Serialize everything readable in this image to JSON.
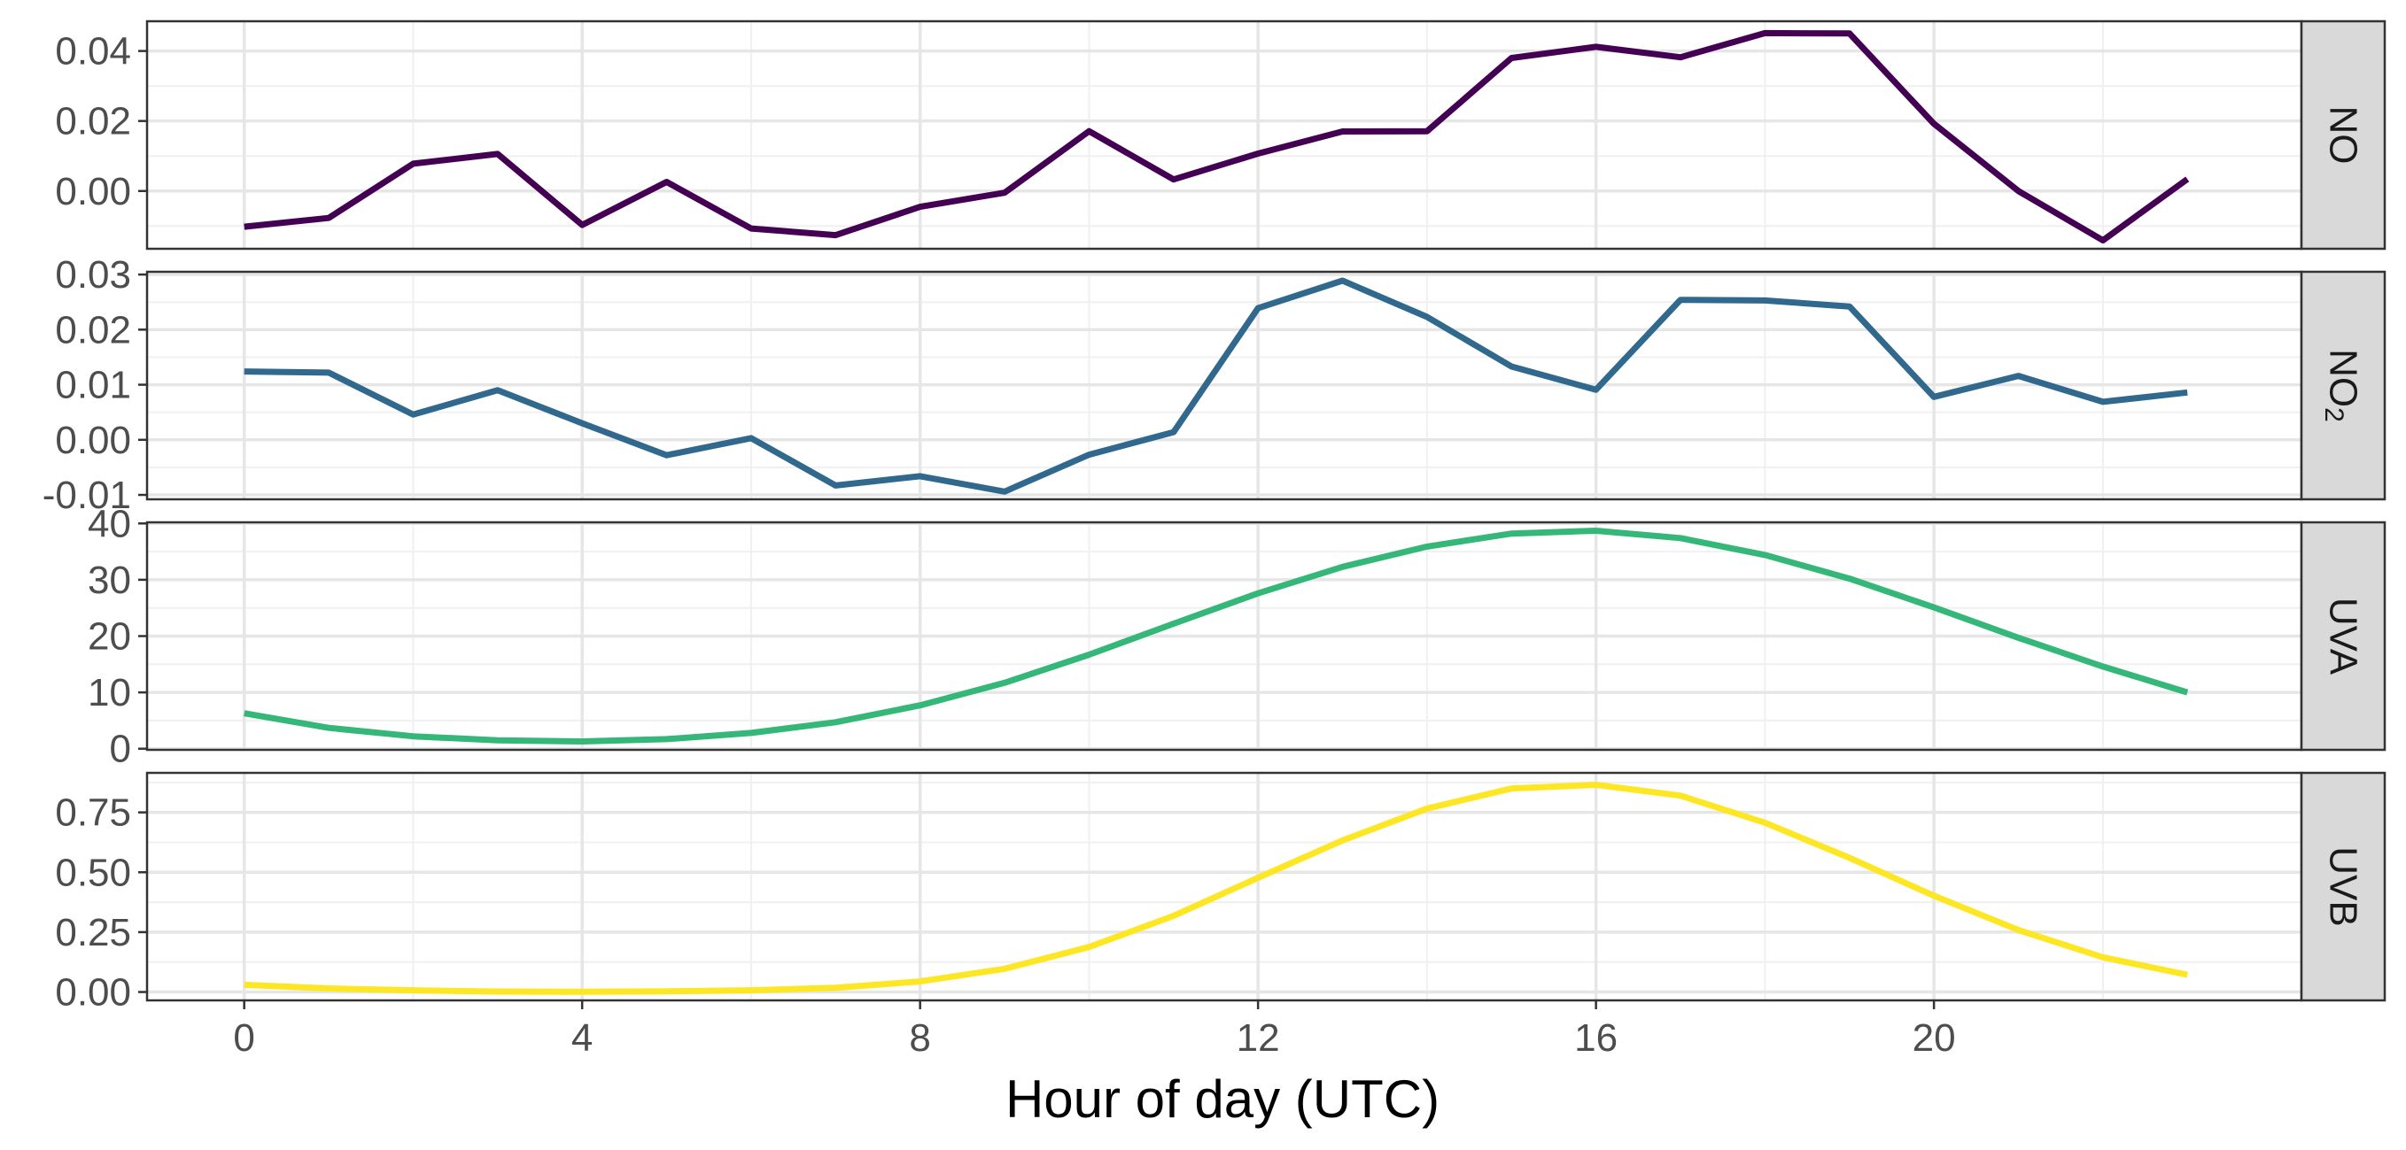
{
  "chart_data": {
    "type": "line",
    "xlabel": "Hour of day (UTC)",
    "x": [
      0,
      1,
      2,
      3,
      4,
      5,
      6,
      7,
      8,
      9,
      10,
      11,
      12,
      13,
      14,
      15,
      16,
      17,
      18,
      19,
      20,
      21,
      22,
      23
    ],
    "x_ticks": [
      0,
      4,
      8,
      12,
      16,
      20
    ],
    "x_tick_labels": [
      "0",
      "4",
      "8",
      "12",
      "16",
      "20"
    ],
    "xlim": [
      -1.15,
      24.35
    ],
    "grid": true,
    "panels": [
      {
        "label": "NO",
        "label_sub": "",
        "color": "#440154",
        "ylim": [
          -0.0165,
          0.0485
        ],
        "y_ticks": [
          0,
          0.02,
          0.04
        ],
        "y_tick_labels": [
          "0.00",
          "0.02",
          "0.04"
        ],
        "values": [
          -0.0102,
          -0.0077,
          0.0078,
          0.0106,
          -0.0097,
          0.0026,
          -0.0107,
          -0.0126,
          -0.0045,
          -0.0005,
          0.0171,
          0.0033,
          0.0107,
          0.017,
          0.0171,
          0.038,
          0.0412,
          0.0382,
          0.0451,
          0.045,
          0.0192,
          0.0,
          -0.0141,
          0.0034
        ]
      },
      {
        "label": "NO",
        "label_sub": "2",
        "color": "#31688e",
        "ylim": [
          -0.0108,
          0.0305
        ],
        "y_ticks": [
          -0.01,
          0,
          0.01,
          0.02,
          0.03
        ],
        "y_tick_labels": [
          "-0.01",
          "0.00",
          "0.01",
          "0.02",
          "0.03"
        ],
        "values": [
          0.0124,
          0.0122,
          0.0046,
          0.009,
          0.003,
          -0.0028,
          0.0003,
          -0.0083,
          -0.0066,
          -0.0094,
          -0.0027,
          0.0014,
          0.0239,
          0.0289,
          0.0223,
          0.0133,
          0.0091,
          0.0254,
          0.0253,
          0.0242,
          0.0078,
          0.0116,
          0.0069,
          0.0086
        ]
      },
      {
        "label": "UVA",
        "label_sub": "",
        "color": "#35b779",
        "ylim": [
          -0.2,
          40.2
        ],
        "y_ticks": [
          0,
          10,
          20,
          30,
          40
        ],
        "y_tick_labels": [
          "0",
          "10",
          "20",
          "30",
          "40"
        ],
        "values": [
          6.3,
          3.7,
          2.2,
          1.5,
          1.3,
          1.7,
          2.8,
          4.7,
          7.7,
          11.7,
          16.7,
          22.2,
          27.6,
          32.3,
          35.9,
          38.2,
          38.7,
          37.4,
          34.4,
          30.2,
          25.1,
          19.7,
          14.6,
          10.0
        ]
      },
      {
        "label": "UVB",
        "label_sub": "",
        "color": "#fde725",
        "ylim": [
          -0.035,
          0.915
        ],
        "y_ticks": [
          0,
          0.25,
          0.5,
          0.75
        ],
        "y_tick_labels": [
          "0.00",
          "0.25",
          "0.50",
          "0.75"
        ],
        "values": [
          0.03,
          0.015,
          0.007,
          0.002,
          0.001,
          0.003,
          0.007,
          0.018,
          0.044,
          0.097,
          0.188,
          0.318,
          0.477,
          0.633,
          0.766,
          0.85,
          0.865,
          0.82,
          0.707,
          0.56,
          0.402,
          0.259,
          0.145,
          0.072
        ]
      }
    ]
  }
}
